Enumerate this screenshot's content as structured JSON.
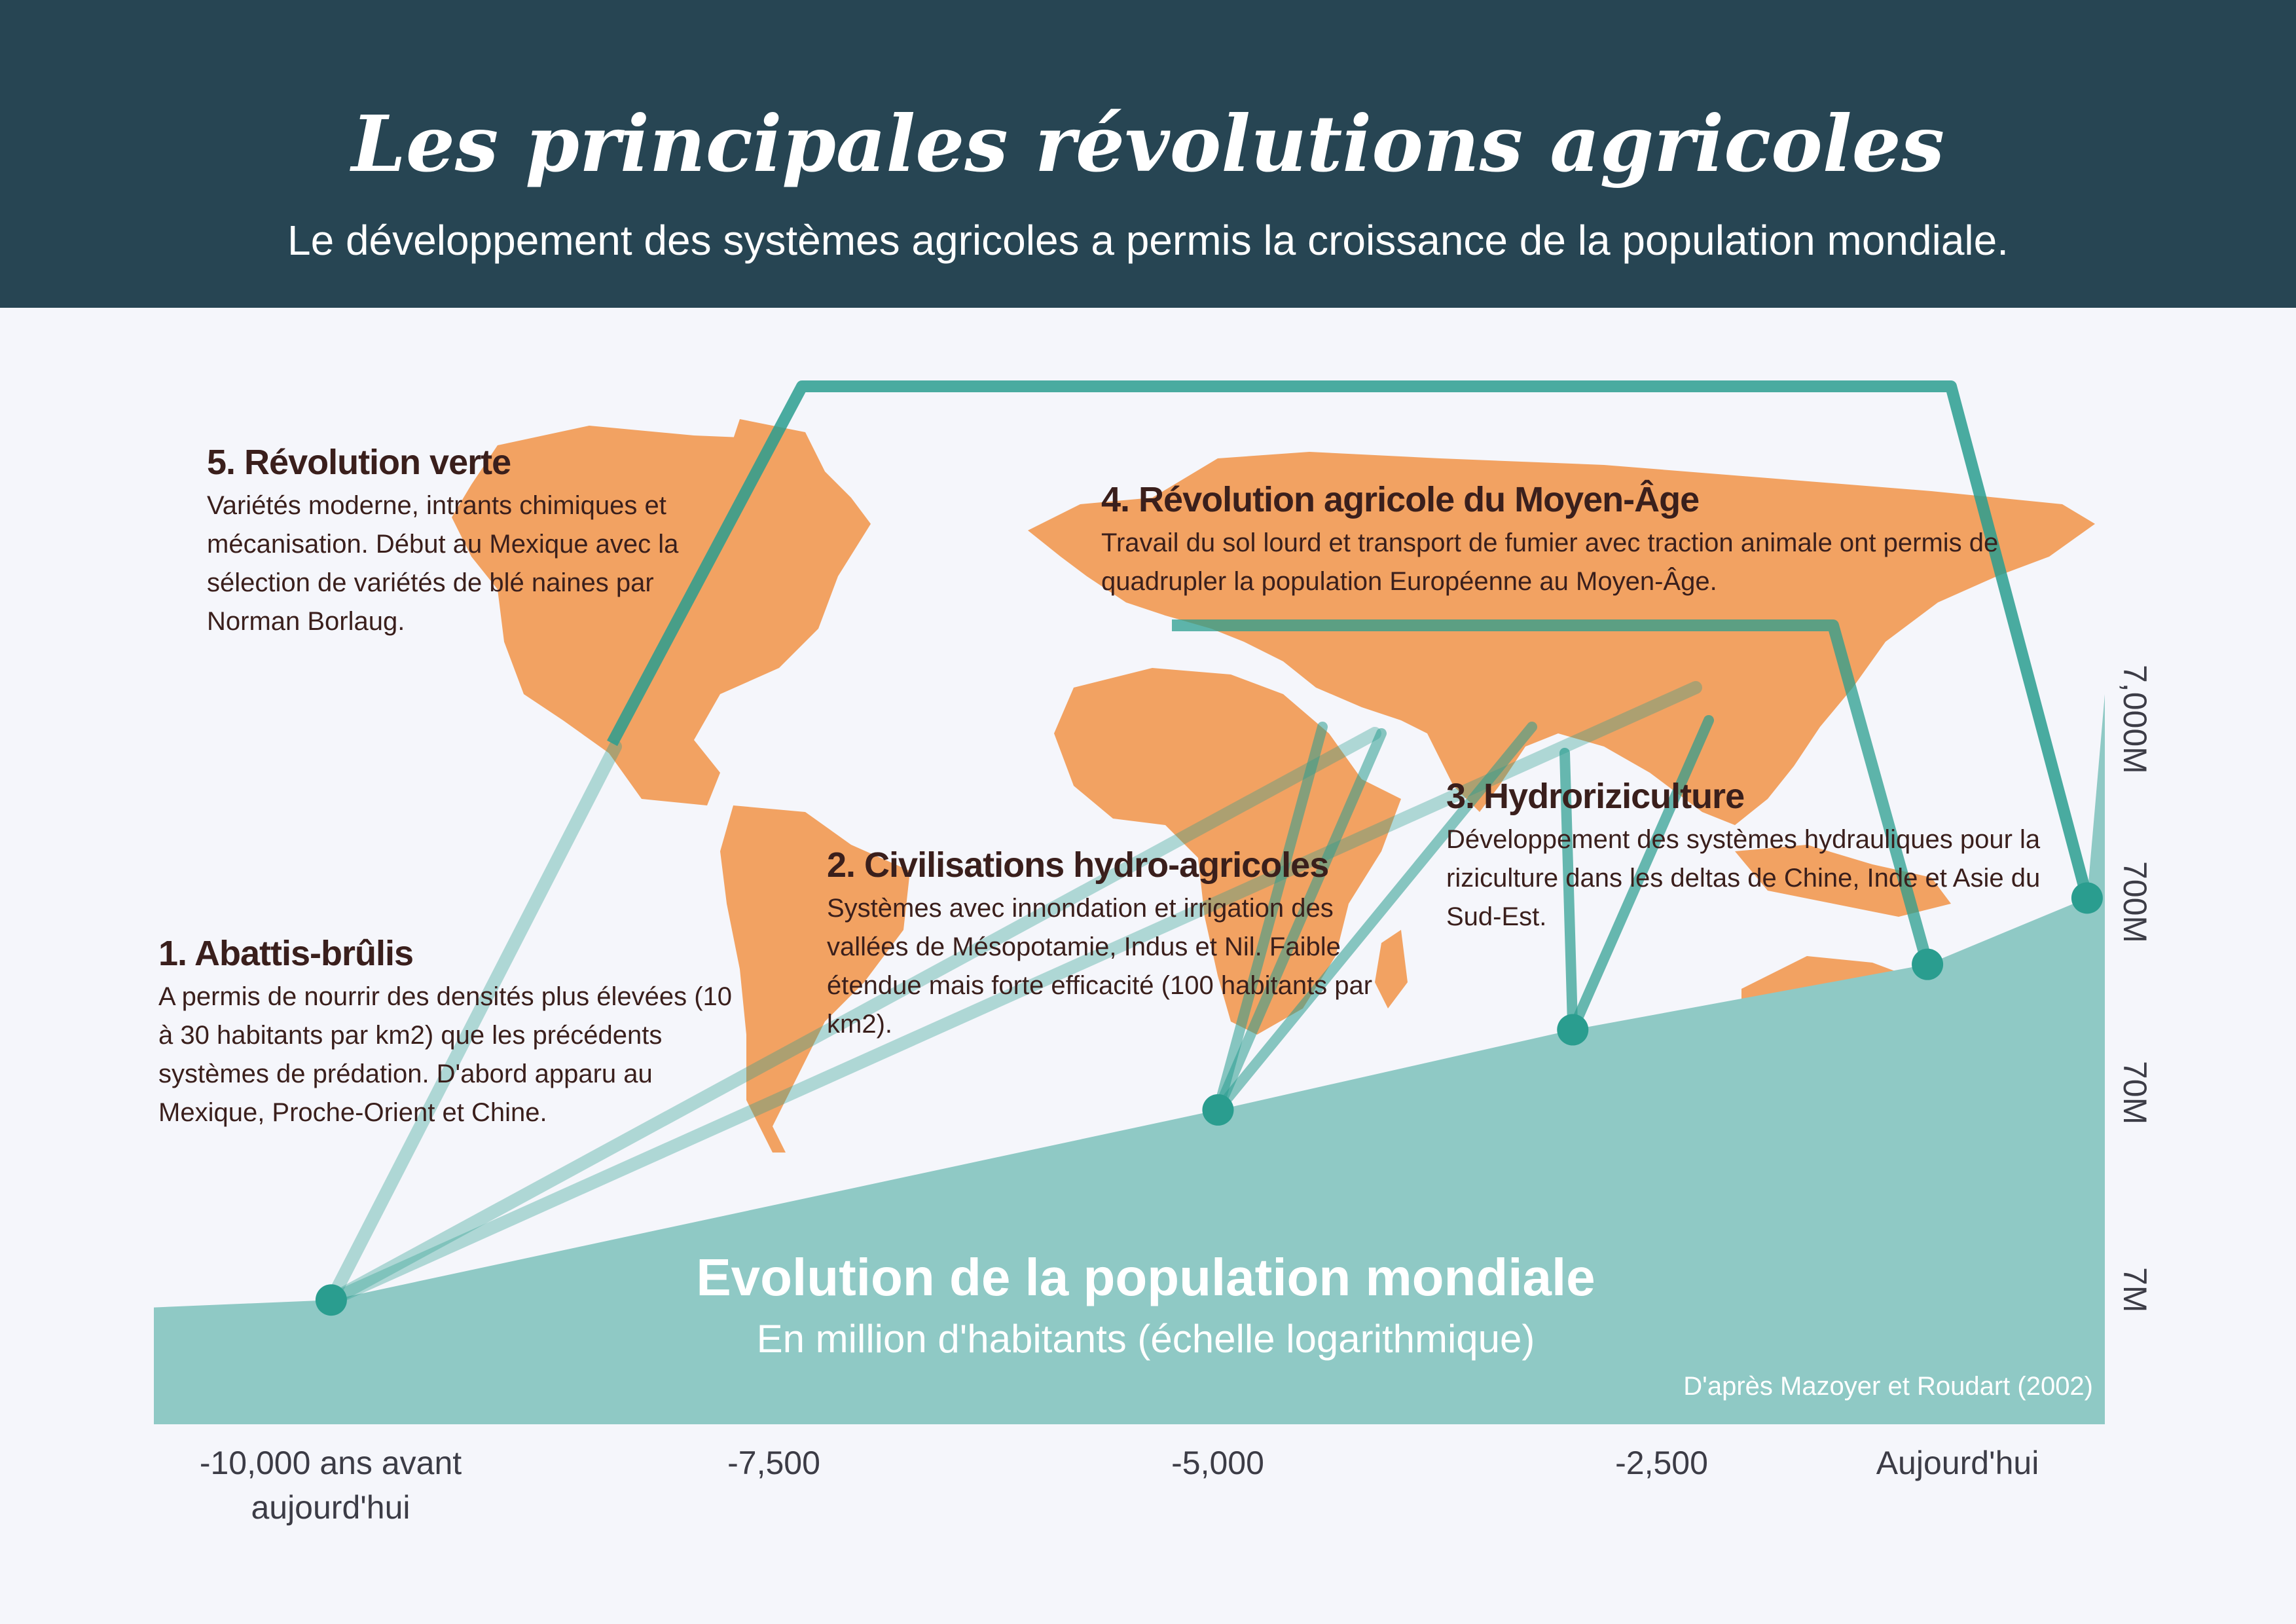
{
  "header": {
    "title": "Les principales révolutions agricoles",
    "subtitle": "Le développement des systèmes agricoles a permis la croissance de la population mondiale."
  },
  "annotations": [
    {
      "title": "1. Abattis-brûlis",
      "text": "A permis de nourrir des densités plus élevées (10 à 30 habitants par km2) que les précédents systèmes de prédation. D'abord apparu au Mexique, Proche-Orient et Chine."
    },
    {
      "title": "2. Civilisations hydro-agricoles",
      "text": "Systèmes avec innondation et irrigation des vallées de Mésopotamie, Indus et Nil. Faible étendue mais forte efficacité (100 habitants par km2)."
    },
    {
      "title": "3. Hydroriziculture",
      "text": "Développement des systèmes hydrauliques pour la riziculture dans les deltas de Chine, Inde et Asie du Sud-Est."
    },
    {
      "title": "4. Révolution agricole du Moyen-Âge",
      "text": "Travail du sol lourd et transport de fumier avec traction animale ont permis de quadrupler la population Européenne au Moyen-Âge."
    },
    {
      "title": "5. Révolution verte",
      "text": "Variétés moderne, intrants chimiques et mécanisation. Début au Mexique avec la sélection de variétés de blé naines par Norman Borlaug."
    }
  ],
  "colors": {
    "header": "#274553",
    "area": "#8fc9c5",
    "teal": "#2a9d8f",
    "map": "#f2a262",
    "text": "#3a1f1c"
  },
  "chart_data": {
    "type": "area",
    "title": "Evolution de la population mondiale",
    "subtitle": "En million d'habitants (échelle logarithmique)",
    "source": "D'après Mazoyer et Roudart (2002)",
    "x_ticks": [
      -10000,
      -7500,
      -5000,
      -2500,
      0
    ],
    "x_tick_labels": [
      "-10,000 ans avant aujourd'hui",
      "-7,500",
      "-5,000",
      "-2,500",
      "Aujourd'hui"
    ],
    "y_scale": "log",
    "y_ticks": [
      7,
      70,
      700,
      7000
    ],
    "y_tick_labels": [
      "7M",
      "70M",
      "700M",
      "7,000M"
    ],
    "xlim": [
      -11000,
      0
    ],
    "ylim": [
      1.5,
      20000
    ],
    "series": [
      {
        "x": [
          -11000,
          -10000,
          -5000,
          -3000,
          -1000,
          -100,
          0
        ],
        "y": [
          5.5,
          6,
          55,
          140,
          300,
          650,
          7000
        ]
      }
    ],
    "events": [
      {
        "label": "1. Abattis-brûlis",
        "x": -10000,
        "y": 6
      },
      {
        "label": "2. Civilisations hydro-agricoles",
        "x": -5000,
        "y": 55
      },
      {
        "label": "3. Hydroriziculture",
        "x": -3000,
        "y": 140
      },
      {
        "label": "4. Révolution agricole du Moyen-Âge",
        "x": -1000,
        "y": 300
      },
      {
        "label": "5. Révolution verte",
        "x": -100,
        "y": 650
      }
    ]
  }
}
